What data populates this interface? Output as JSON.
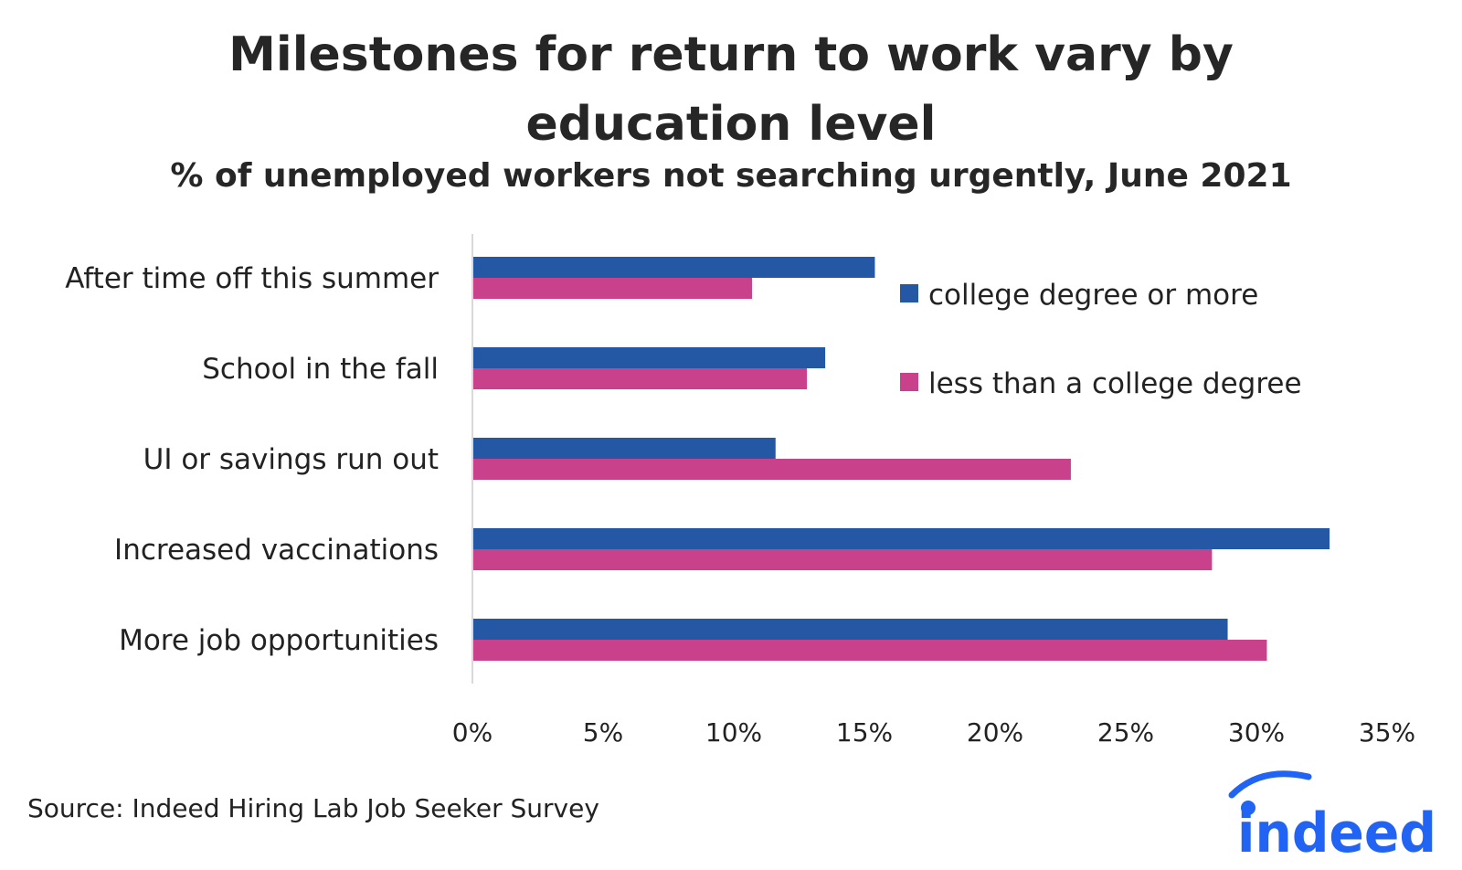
{
  "title_line1": "Milestones for return to work vary by",
  "title_line2": "education level",
  "subtitle": "% of unemployed workers not searching urgently, June 2021",
  "source": "Source: Indeed Hiring Lab Job Seeker Survey",
  "logo_text": "indeed",
  "colors": {
    "college": "#2457a4",
    "less": "#c8418a",
    "axis": "#d9d9d9",
    "logo": "#2164f3"
  },
  "chart_data": {
    "type": "bar",
    "orientation": "horizontal",
    "categories": [
      "After time off this summer",
      "School in the fall",
      "UI or savings run out",
      "Increased vaccinations",
      "More job opportunities"
    ],
    "series": [
      {
        "name": "college degree or more",
        "values": [
          15.4,
          13.5,
          11.6,
          32.8,
          28.9
        ]
      },
      {
        "name": "less than a college degree",
        "values": [
          10.7,
          12.8,
          22.9,
          28.3,
          30.4
        ]
      }
    ],
    "xlim": [
      0,
      35
    ],
    "xticks": [
      "0%",
      "5%",
      "10%",
      "15%",
      "20%",
      "25%",
      "30%",
      "35%"
    ],
    "grid": false,
    "legend_position": "top-right"
  }
}
